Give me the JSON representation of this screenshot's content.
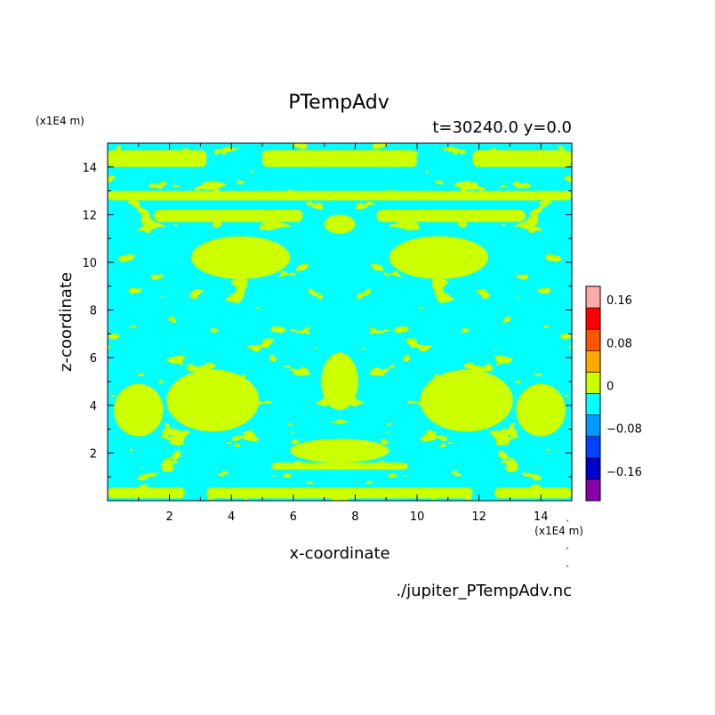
{
  "chart_data": {
    "type": "heatmap",
    "title": "PTempAdv",
    "subtitle": "t=30240.0 y=0.0",
    "xlabel": "x-coordinate",
    "ylabel": "z-coordinate",
    "x_unit": "(x1E4 m)",
    "y_unit": "(x1E4 m)",
    "xlim": [
      0,
      15
    ],
    "ylim": [
      0,
      15
    ],
    "x_ticks": [
      2,
      4,
      6,
      8,
      10,
      12,
      14
    ],
    "y_ticks": [
      2,
      4,
      6,
      8,
      10,
      12,
      14
    ],
    "x_tick_labels": [
      "2",
      "4",
      "6",
      "8",
      "10",
      "12",
      "14"
    ],
    "y_tick_labels": [
      "2",
      "4",
      "6",
      "8",
      "10",
      "12",
      "14"
    ],
    "source_file": "./jupiter_PTempAdv.nc",
    "colorbar": {
      "levels": [
        -0.2,
        -0.16,
        -0.12,
        -0.08,
        -0.04,
        0,
        0.04,
        0.08,
        0.12,
        0.16,
        0.2
      ],
      "colors": [
        "#8800aa",
        "#0000cc",
        "#0044ff",
        "#0099ff",
        "#00ffff",
        "#ccff00",
        "#ffaa00",
        "#ff5500",
        "#ff0000",
        "#ffaaaa"
      ],
      "tick_values": [
        0.16,
        0.08,
        0,
        -0.08,
        -0.16
      ],
      "tick_labels": [
        "0.16",
        "0.08",
        "0",
        "−0.08",
        "−0.16"
      ]
    },
    "field": {
      "description_of_values": "two-level pattern: small negative (cyan, -0.04..0) and small positive (yellow-green, 0..0.04), mirror-symmetric about x=7.5",
      "negative_color": "#00ffff",
      "positive_color": "#ccff00"
    },
    "grid": false
  }
}
